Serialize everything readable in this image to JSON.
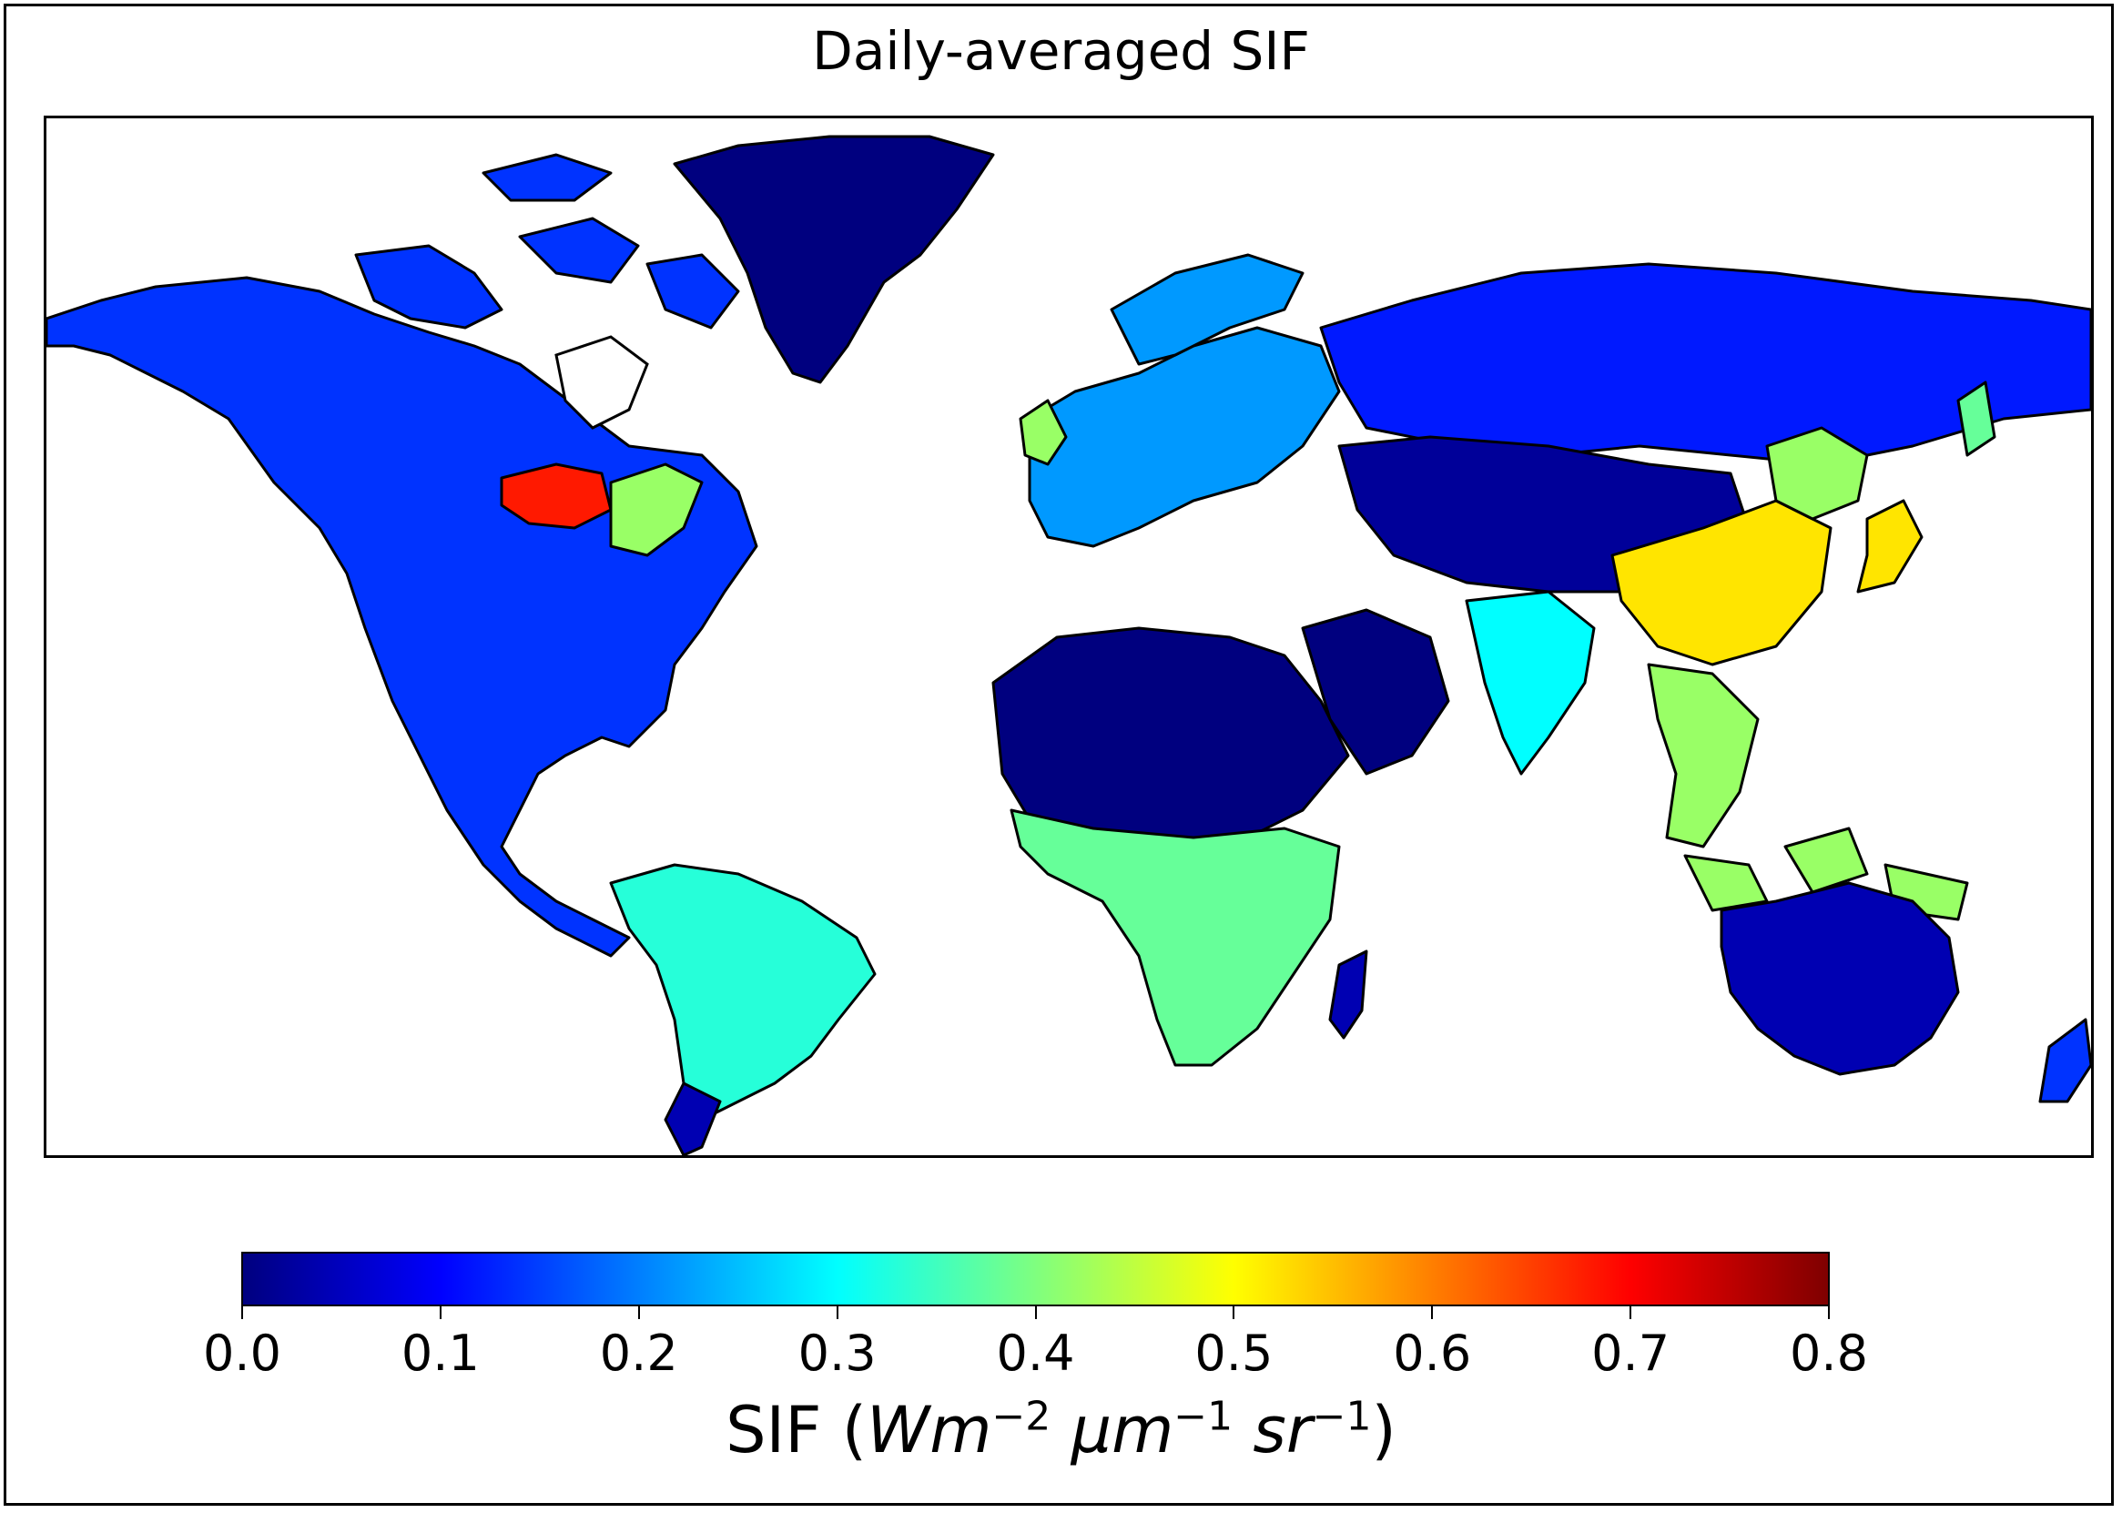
{
  "title": "Daily-averaged SIF",
  "colorbar": {
    "label_prefix": "SIF (",
    "label_units": [
      {
        "base": "Wm",
        "exp": "−2"
      },
      {
        "base": " μm",
        "exp": "−1"
      },
      {
        "base": " sr",
        "exp": "−1"
      }
    ],
    "label_suffix": ")",
    "ticks": [
      "0.0",
      "0.1",
      "0.2",
      "0.3",
      "0.4",
      "0.5",
      "0.6",
      "0.7",
      "0.8"
    ],
    "min": 0.0,
    "max": 0.8,
    "colormap": "jet",
    "colors": [
      "#00007f",
      "#0000ff",
      "#007fff",
      "#00ffff",
      "#7fff7f",
      "#ffff00",
      "#ff7f00",
      "#ff0000",
      "#7f0000"
    ]
  },
  "map": {
    "projection": "plate carree",
    "ocean_color": "#ffffff",
    "coastline_color": "#000000",
    "regions": [
      {
        "name": "north-america-boreal",
        "level": 0.14
      },
      {
        "name": "us-corn-belt",
        "level": 0.68
      },
      {
        "name": "eastern-us",
        "level": 0.42
      },
      {
        "name": "greenland",
        "level": 0.0
      },
      {
        "name": "amazon",
        "level": 0.33
      },
      {
        "name": "sahara",
        "level": 0.0
      },
      {
        "name": "central-africa",
        "level": 0.38
      },
      {
        "name": "europe",
        "level": 0.22
      },
      {
        "name": "siberia",
        "level": 0.12
      },
      {
        "name": "central-asia",
        "level": 0.02
      },
      {
        "name": "east-china",
        "level": 0.52
      },
      {
        "name": "india",
        "level": 0.3
      },
      {
        "name": "southeast-asia",
        "level": 0.42
      },
      {
        "name": "australia",
        "level": 0.04
      }
    ]
  }
}
